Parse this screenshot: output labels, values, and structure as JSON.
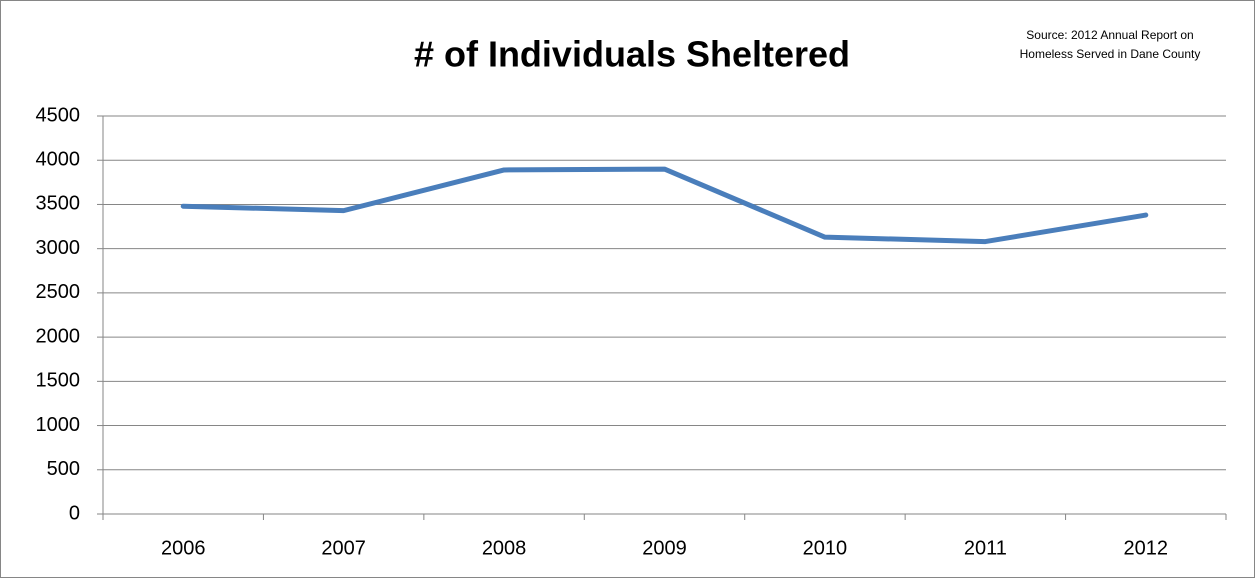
{
  "chart_data": {
    "type": "line",
    "title": "# of Individuals Sheltered",
    "annotation": [
      "Source: 2012 Annual Report on",
      "Homeless Served in Dane County"
    ],
    "categories": [
      "2006",
      "2007",
      "2008",
      "2009",
      "2010",
      "2011",
      "2012"
    ],
    "series": [
      {
        "name": "# of Individuals Sheltered",
        "color": "#4a7ebb",
        "values": [
          3480,
          3430,
          3890,
          3900,
          3130,
          3080,
          3380
        ]
      }
    ],
    "ylim": [
      0,
      4500
    ],
    "yticks": [
      0,
      500,
      1000,
      1500,
      2000,
      2500,
      3000,
      3500,
      4000,
      4500
    ],
    "grid": true
  }
}
